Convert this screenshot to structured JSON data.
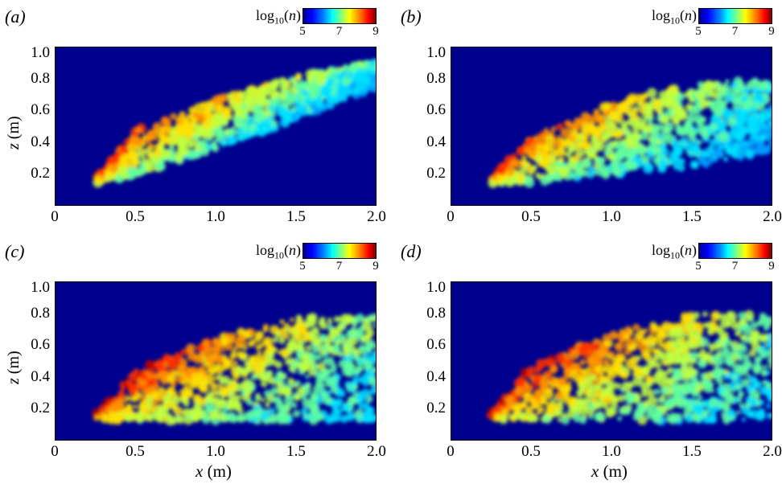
{
  "panels": [
    {
      "id": "a",
      "label": "(a)"
    },
    {
      "id": "b",
      "label": "(b)"
    },
    {
      "id": "c",
      "label": "(c)"
    },
    {
      "id": "d",
      "label": "(d)"
    }
  ],
  "colorbar": {
    "title_base": "log",
    "title_sub": "10",
    "title_var": "n",
    "ticks": [
      "5",
      "7",
      "9"
    ],
    "colormap": "jet"
  },
  "axes": {
    "ylabel_var": "z",
    "ylabel_unit": "(m)",
    "xlabel_var": "x",
    "xlabel_unit": "(m)",
    "yticks": [
      "0.2",
      "0.4",
      "0.6",
      "0.8",
      "1.0"
    ],
    "xticks": [
      "0",
      "0.5",
      "1.0",
      "1.5",
      "2.0"
    ]
  },
  "chart_data": [
    {
      "type": "heatmap",
      "panel": "(a)",
      "xlim": [
        0,
        2.0
      ],
      "ylim": [
        0,
        1.0
      ],
      "clim": [
        5,
        9
      ],
      "plume_upper_edge": {
        "x": [
          0.25,
          0.5,
          1.0,
          1.5,
          2.0
        ],
        "z": [
          0.18,
          0.48,
          0.68,
          0.82,
          0.92
        ]
      },
      "plume_lower_edge": {
        "x": [
          0.25,
          0.5,
          1.0,
          1.5,
          2.0
        ],
        "z": [
          0.14,
          0.2,
          0.36,
          0.55,
          0.75
        ]
      },
      "peak_log10n": 9
    },
    {
      "type": "heatmap",
      "panel": "(b)",
      "xlim": [
        0,
        2.0
      ],
      "ylim": [
        0,
        1.0
      ],
      "clim": [
        5,
        9
      ],
      "plume_upper_edge": {
        "x": [
          0.25,
          0.5,
          1.0,
          1.5,
          2.0
        ],
        "z": [
          0.18,
          0.45,
          0.65,
          0.78,
          0.8
        ]
      },
      "plume_lower_edge": {
        "x": [
          0.25,
          0.5,
          1.0,
          1.5,
          2.0
        ],
        "z": [
          0.14,
          0.15,
          0.2,
          0.25,
          0.35
        ]
      },
      "peak_log10n": 9
    },
    {
      "type": "heatmap",
      "panel": "(c)",
      "xlim": [
        0,
        2.0
      ],
      "ylim": [
        0,
        1.0
      ],
      "clim": [
        5,
        9
      ],
      "plume_upper_edge": {
        "x": [
          0.25,
          0.5,
          1.0,
          1.5,
          2.0
        ],
        "z": [
          0.18,
          0.45,
          0.65,
          0.78,
          0.78
        ]
      },
      "plume_lower_edge": {
        "x": [
          0.25,
          0.5,
          1.0,
          1.5,
          2.0
        ],
        "z": [
          0.14,
          0.13,
          0.13,
          0.13,
          0.13
        ]
      },
      "peak_log10n": 9
    },
    {
      "type": "heatmap",
      "panel": "(d)",
      "xlim": [
        0,
        2.0
      ],
      "ylim": [
        0,
        1.0
      ],
      "clim": [
        5,
        9
      ],
      "plume_upper_edge": {
        "x": [
          0.25,
          0.5,
          1.0,
          1.5,
          2.0
        ],
        "z": [
          0.18,
          0.48,
          0.68,
          0.8,
          0.8
        ]
      },
      "plume_lower_edge": {
        "x": [
          0.25,
          0.5,
          1.0,
          1.5,
          2.0
        ],
        "z": [
          0.14,
          0.13,
          0.13,
          0.13,
          0.13
        ]
      },
      "peak_log10n": 9
    }
  ]
}
